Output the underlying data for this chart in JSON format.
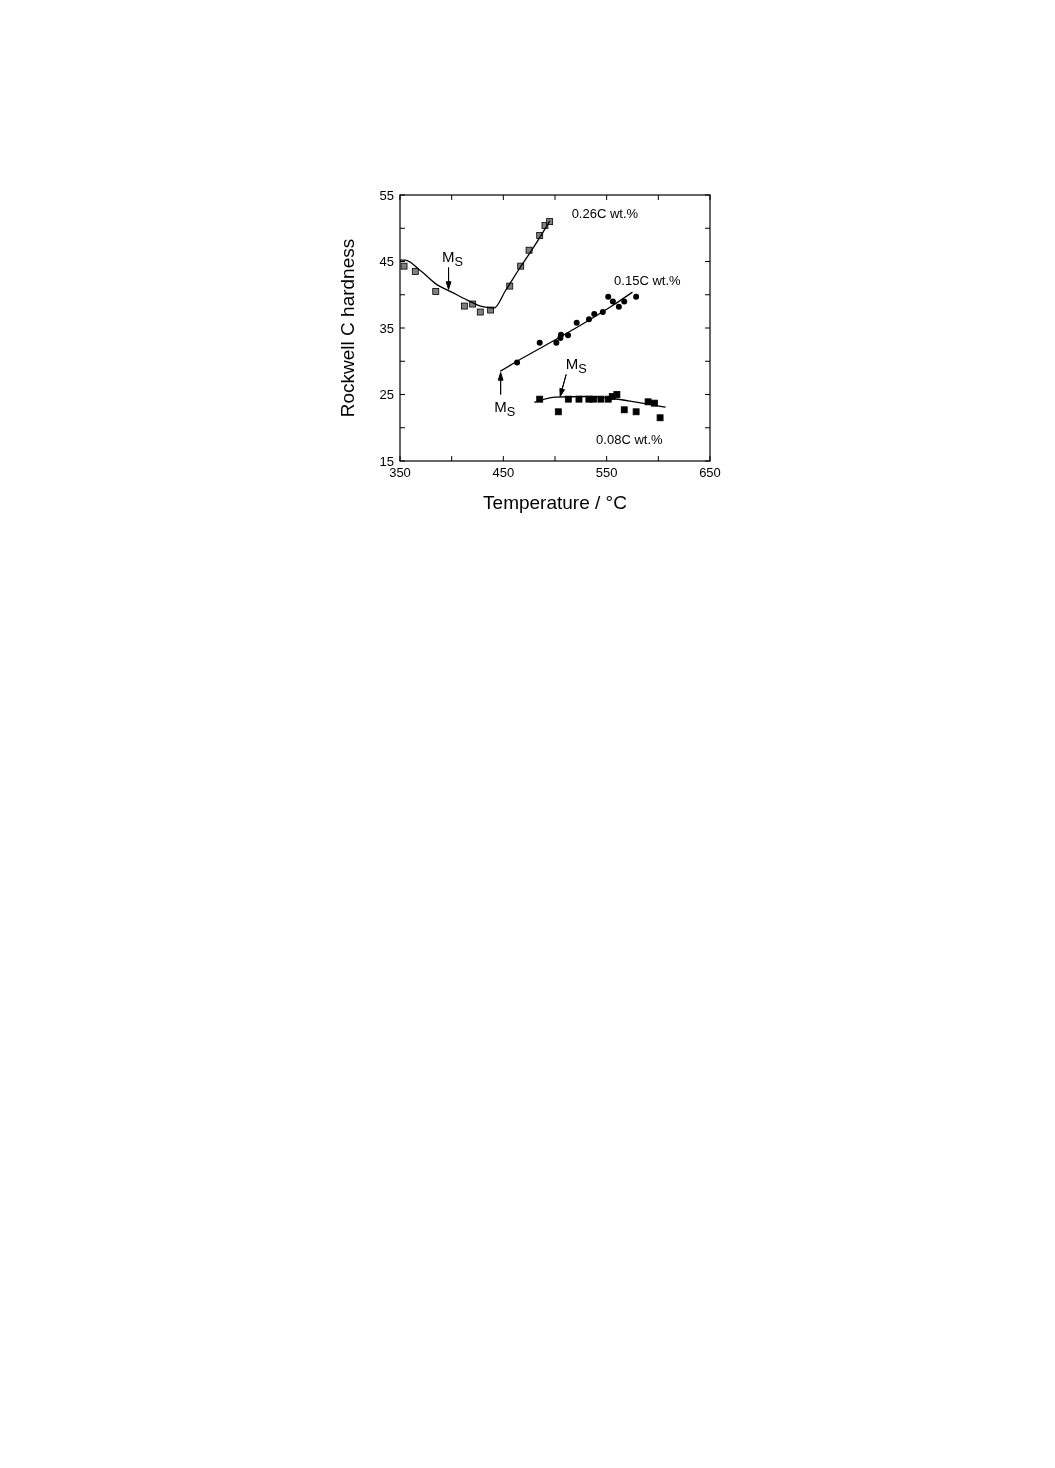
{
  "chart_data": {
    "type": "scatter",
    "xlabel": "Temperature  /  °C",
    "ylabel": "Rockwell C hardness",
    "xlim": [
      350,
      650
    ],
    "ylim": [
      15,
      55
    ],
    "xticks": [
      350,
      {
        "value": 400,
        "label": null
      },
      450,
      {
        "value": 500,
        "label": null
      },
      550,
      {
        "value": 600,
        "label": null
      },
      650
    ],
    "yticks": [
      15,
      {
        "value": 20,
        "label": null
      },
      25,
      {
        "value": 30,
        "label": null
      },
      35,
      {
        "value": 40,
        "label": null
      },
      45,
      {
        "value": 50,
        "label": null
      },
      55
    ],
    "grid": false,
    "series": [
      {
        "name": "0.26C wt.%",
        "marker": "square",
        "color": "#808080",
        "x": [
          353.9,
          364.8,
          384.6,
          412.3,
          420.3,
          427.7,
          437.7,
          456.2,
          466.8,
          474.9,
          485.2,
          490.3,
          494.8
        ],
        "values": [
          44.3,
          43.5,
          40.5,
          38.3,
          38.6,
          37.4,
          37.7,
          41.3,
          44.3,
          46.7,
          48.9,
          50.4,
          51
        ]
      },
      {
        "name": "0.15C wt.%",
        "marker": "circle",
        "color": "#000000",
        "x": [
          463.3,
          485.2,
          501.3,
          505.2,
          505.8,
          512.6,
          521,
          532.9,
          538,
          546.3,
          551.5,
          556,
          561.8,
          567,
          578.5
        ],
        "values": [
          29.8,
          32.8,
          32.8,
          33.5,
          34,
          33.9,
          35.8,
          36.3,
          37.1,
          37.4,
          39.7,
          39,
          38.2,
          39,
          39.7
        ]
      },
      {
        "name": "0.08C wt.%",
        "marker": "square",
        "color": "#000000",
        "x": [
          485.2,
          503.2,
          512.9,
          523.2,
          532.8,
          537.3,
          544.4,
          551.5,
          555.4,
          559.9,
          567,
          578.5,
          590.1,
          596.2,
          601.7
        ],
        "values": [
          24.3,
          22.4,
          24.3,
          24.3,
          24.3,
          24.3,
          24.3,
          24.3,
          24.7,
          25,
          22.7,
          22.4,
          23.9,
          23.7,
          21.5
        ]
      },
      {
        "type": "line",
        "marker": "none",
        "color": "#000000",
        "x": [
          350,
          355,
          370,
          385,
          400,
          415,
          430,
          441,
          452,
          465,
          480,
          495
        ],
        "values": [
          45.2,
          45.2,
          43.6,
          41.6,
          40.4,
          39.2,
          38.2,
          38,
          40.6,
          43.8,
          47.3,
          51.1
        ]
      },
      {
        "type": "line",
        "marker": "none",
        "color": "#000000",
        "x": [
          447,
          470,
          500,
          530,
          555,
          575
        ],
        "values": [
          28.5,
          30.6,
          33.2,
          35.9,
          38.3,
          40.4
        ]
      },
      {
        "type": "line",
        "marker": "none",
        "color": "#000000",
        "x": [
          480,
          500,
          530,
          556,
          580,
          607
        ],
        "values": [
          23.8,
          24.6,
          24.7,
          24.4,
          23.8,
          23.1
        ]
      }
    ],
    "annotations": [
      {
        "text": "M$_{S}$",
        "x": 397,
        "y": 40.8
      },
      {
        "text": "M$_{S}$",
        "x": 447.4,
        "y": 28.3
      },
      {
        "text": "M$_{S}$",
        "x": 505,
        "y": 24.7
      }
    ]
  }
}
